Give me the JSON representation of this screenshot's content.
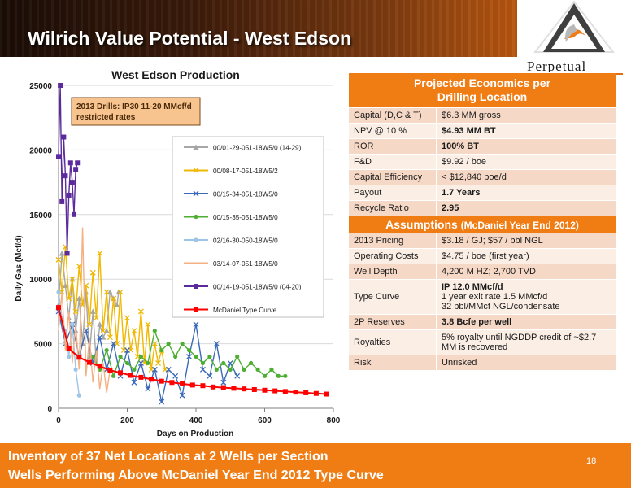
{
  "slide": {
    "title": "Wilrich Value Potential - West Edson",
    "logo_text": "Perpetual",
    "page_number": "18",
    "footer_line1": "Inventory of 37 Net Locations at 2 Wells per Section",
    "footer_line2": "Wells Performing Above McDaniel Year End 2012 Type Curve"
  },
  "table": {
    "header1": "Projected Economics per",
    "header1b": "Drilling Location",
    "econ_rows": [
      {
        "label": "Capital (D,C & T)",
        "value": "$6.3 MM gross"
      },
      {
        "label": "NPV @ 10 %",
        "value": "$4.93 MM BT"
      },
      {
        "label": "ROR",
        "value": "100% BT"
      },
      {
        "label": "F&D",
        "value": "$9.92 / boe"
      },
      {
        "label": "Capital Efficiency",
        "value": "< $12,840 boe/d"
      },
      {
        "label": "Payout",
        "value": "1.7 Years"
      },
      {
        "label": "Recycle Ratio",
        "value": "2.95"
      }
    ],
    "header2": "Assumptions",
    "header2b": "(McDaniel Year End 2012)",
    "assump_rows": [
      {
        "label": "2013 Pricing",
        "value": "$3.18 / GJ;  $57 / bbl NGL"
      },
      {
        "label": "Operating Costs",
        "value": "$4.75 / boe (first  year)"
      },
      {
        "label": "Well Depth",
        "value": "4,200 M HZ; 2,700 TVD"
      },
      {
        "label": "Type Curve",
        "value": "IP 12.0 MMcf/d",
        "value2": "1 year exit rate 1.5 MMcf/d",
        "value3": "32 bbl/MMcf  NGL/condensate"
      },
      {
        "label": "2P Reserves",
        "value": "3.8  Bcfe per well"
      },
      {
        "label": "Royalties",
        "value": "5% royalty until NGDDP credit of ~$2.7",
        "value2": "MM is recovered"
      },
      {
        "label": "Risk",
        "value": "Unrisked"
      }
    ]
  },
  "chart_data": {
    "type": "line",
    "title": "West Edson Production",
    "xlabel": "Days on Production",
    "ylabel": "Daily Gas (Mcf/d)",
    "xlim": [
      0,
      800
    ],
    "ylim": [
      0,
      25000
    ],
    "x_ticks": [
      "0",
      "200",
      "400",
      "600",
      "800"
    ],
    "y_ticks": [
      "0",
      "5000",
      "10000",
      "15000",
      "20000",
      "25000"
    ],
    "annotation_line1": "2013 Drills: IP30  11-20 MMcf/d",
    "annotation_line2": "restricted rates",
    "legend_position": "right",
    "series": [
      {
        "name": "00/01-29-051-18W5/0 (14-29)",
        "color": "#a6a6a6",
        "marker": "triangle",
        "x": [
          0,
          10,
          20,
          30,
          40,
          50,
          60,
          70,
          80,
          90,
          100,
          110,
          120,
          130,
          140,
          150,
          160,
          170,
          175
        ],
        "y": [
          8000,
          12000,
          9500,
          7000,
          10000,
          6000,
          8500,
          5000,
          9000,
          4000,
          7500,
          3500,
          6500,
          5500,
          6000,
          9000,
          8500,
          8000,
          9000
        ]
      },
      {
        "name": "00/08-17-051-18W5/2",
        "color": "#f0b800",
        "marker": "x",
        "x": [
          0,
          10,
          20,
          30,
          40,
          50,
          60,
          70,
          80,
          90,
          100,
          110,
          120,
          130,
          140,
          150,
          160,
          170,
          180,
          190,
          200,
          210,
          220,
          230,
          240,
          250,
          260,
          270,
          280,
          290,
          300,
          310
        ],
        "y": [
          11500,
          9000,
          12500,
          8500,
          10000,
          7500,
          11000,
          8000,
          9500,
          6500,
          10500,
          7000,
          12000,
          6000,
          9000,
          5500,
          8500,
          5000,
          9000,
          4500,
          7000,
          4500,
          6000,
          4000,
          7500,
          3500,
          6500,
          3000,
          5000,
          3500,
          4500,
          3000
        ]
      },
      {
        "name": "00/15-34-051-18W5/0",
        "color": "#3a6ab8",
        "marker": "x",
        "x": [
          0,
          20,
          40,
          60,
          80,
          100,
          120,
          140,
          160,
          180,
          200,
          220,
          240,
          260,
          280,
          300,
          320,
          340,
          360,
          380,
          400,
          420,
          440,
          460,
          480,
          500,
          520
        ],
        "y": [
          7500,
          5000,
          6500,
          4000,
          6000,
          3500,
          5500,
          3000,
          5000,
          2500,
          4500,
          2000,
          3500,
          1500,
          3000,
          500,
          3000,
          2500,
          1000,
          4000,
          6500,
          3000,
          2500,
          5000,
          2000,
          3500,
          2500
        ]
      },
      {
        "name": "00/15-35-051-18W5/0",
        "color": "#4caf32",
        "marker": "circle",
        "x": [
          100,
          120,
          140,
          160,
          180,
          200,
          220,
          240,
          260,
          280,
          300,
          320,
          340,
          360,
          380,
          400,
          420,
          440,
          460,
          480,
          500,
          520,
          540,
          560,
          580,
          600,
          620,
          640,
          660
        ],
        "y": [
          4000,
          3000,
          4500,
          2500,
          4000,
          3500,
          3000,
          4000,
          3500,
          6000,
          4500,
          5000,
          4000,
          5000,
          4500,
          4000,
          3500,
          4000,
          3000,
          3500,
          3000,
          4000,
          3000,
          3500,
          3000,
          2500,
          3000,
          2500,
          2500
        ]
      },
      {
        "name": "02/16-30-050-18W5/0",
        "color": "#9ec4e8",
        "marker": "circle",
        "x": [
          0,
          10,
          20,
          30,
          40,
          50,
          60
        ],
        "y": [
          9000,
          7000,
          6000,
          4000,
          6500,
          3000,
          1000
        ]
      },
      {
        "name": "03/14-07-051-18W5/0",
        "color": "#f4b183",
        "marker": "none",
        "x": [
          0,
          10,
          20,
          30,
          40,
          50,
          60,
          70,
          80,
          90,
          100,
          110,
          120,
          130,
          140,
          150
        ],
        "y": [
          6000,
          9000,
          4500,
          7500,
          3500,
          6500,
          3000,
          14000,
          2500,
          5500,
          2000,
          4500,
          1500,
          3500,
          1200,
          3000
        ]
      },
      {
        "name": "00/14-19-051-18W5/0 (04-20)",
        "color": "#5b2a9c",
        "marker": "square",
        "x": [
          0,
          5,
          10,
          15,
          20,
          25,
          30,
          35,
          40,
          45,
          50,
          55
        ],
        "y": [
          19500,
          25000,
          16000,
          21000,
          18000,
          12000,
          16500,
          19000,
          17500,
          15000,
          18500,
          19000
        ]
      },
      {
        "name": "McDaniel Type Curve",
        "color": "#ff0000",
        "marker": "square",
        "x": [
          0,
          30,
          60,
          90,
          120,
          150,
          180,
          210,
          240,
          270,
          300,
          330,
          360,
          390,
          420,
          450,
          480,
          510,
          540,
          570,
          600,
          630,
          660,
          690,
          720,
          750,
          780
        ],
        "y": [
          7800,
          4600,
          3950,
          3550,
          3250,
          2950,
          2750,
          2550,
          2400,
          2250,
          2100,
          2000,
          1900,
          1800,
          1750,
          1650,
          1600,
          1550,
          1500,
          1450,
          1400,
          1350,
          1300,
          1250,
          1200,
          1150,
          1100
        ]
      }
    ]
  }
}
